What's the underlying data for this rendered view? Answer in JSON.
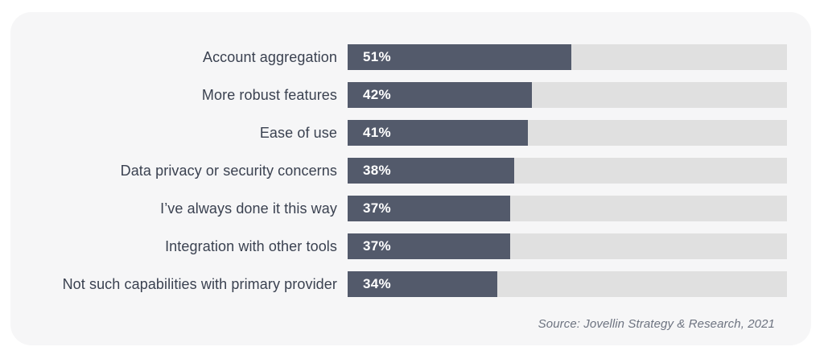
{
  "chart_data": {
    "type": "bar",
    "orientation": "horizontal",
    "categories": [
      "Account aggregation",
      "More robust features",
      "Ease of use",
      "Data privacy or security concerns",
      "I’ve always done it this way",
      "Integration with other tools",
      "Not such capabilities with primary provider"
    ],
    "values": [
      51,
      42,
      41,
      38,
      37,
      37,
      34
    ],
    "value_labels": [
      "51%",
      "42%",
      "41%",
      "38%",
      "37%",
      "37%",
      "34%"
    ],
    "xlim": [
      0,
      100
    ],
    "title": "",
    "xlabel": "",
    "ylabel": "",
    "grid": false,
    "legend": false,
    "source": "Source: Jovellin Strategy & Research, 2021"
  },
  "colors": {
    "bar_fill": "#535a6b",
    "bar_track": "#e0e0e0",
    "card_background": "#f6f6f7",
    "page_background": "#ffffff",
    "label_text": "#3a4150",
    "value_text": "#ffffff",
    "source_text": "#6d7380"
  }
}
